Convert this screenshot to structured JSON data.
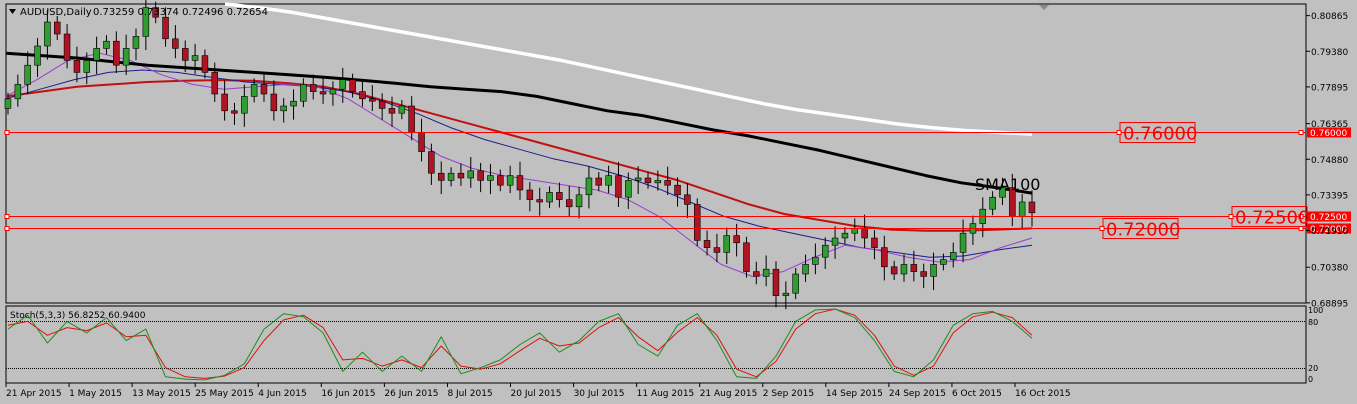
{
  "colors": {
    "background": "#c0c0c0",
    "frame": "#000000",
    "bull_candle": "#2e9e2e",
    "bear_candle": "#b01424",
    "sma100": "#000000",
    "sma200": "#ffffff",
    "ma_red": "#c01010",
    "ma_blue": "#1c1c8c",
    "ma_purple": "#9a3cd0",
    "level_line": "#ff0000",
    "stoch_main": "#1f8c1f",
    "stoch_signal": "#e01010"
  },
  "header": {
    "symbol_label": "AUDUSD,Daily",
    "ohlc_text": "0.73259 0.73374 0.72496 0.72654"
  },
  "annotation": {
    "sma_label": "SMA100"
  },
  "levels": [
    {
      "label": "0.76000",
      "price": 0.76,
      "tag": "0.76000"
    },
    {
      "label": "0.72500",
      "price": 0.725,
      "tag": "0.72500"
    },
    {
      "label": "0.72000",
      "price": 0.72,
      "tag": "0.72000"
    }
  ],
  "stochastic": {
    "label": "Stoch(5,3,3) 56.8252 60.9400",
    "scale_labels": [
      "100",
      "80",
      "20",
      "0"
    ],
    "levels": [
      80,
      20
    ],
    "ylim": [
      0,
      100
    ]
  },
  "chart_data": {
    "type": "candlestick",
    "title": "AUDUSD,Daily",
    "ylim": [
      0.6889,
      0.8135
    ],
    "y_ticks": [
      "0.80865",
      "0.79380",
      "0.77895",
      "0.76365",
      "0.74880",
      "0.73395",
      "0.71910",
      "0.70380",
      "0.68895"
    ],
    "x_ticks": [
      "21 Apr 2015",
      "1 May 2015",
      "13 May 2015",
      "25 May 2015",
      "4 Jun 2015",
      "16 Jun 2015",
      "26 Jun 2015",
      "8 Jul 2015",
      "20 Jul 2015",
      "30 Jul 2015",
      "11 Aug 2015",
      "21 Aug 2015",
      "2 Sep 2015",
      "14 Sep 2015",
      "24 Sep 2015",
      "6 Oct 2015",
      "16 Oct 2015"
    ],
    "closes": [
      0.774,
      0.78,
      0.788,
      0.796,
      0.806,
      0.801,
      0.79,
      0.785,
      0.79,
      0.795,
      0.798,
      0.788,
      0.795,
      0.8,
      0.812,
      0.808,
      0.799,
      0.795,
      0.79,
      0.792,
      0.785,
      0.776,
      0.769,
      0.768,
      0.775,
      0.78,
      0.776,
      0.769,
      0.771,
      0.773,
      0.78,
      0.777,
      0.776,
      0.778,
      0.782,
      0.777,
      0.774,
      0.773,
      0.77,
      0.768,
      0.771,
      0.76,
      0.752,
      0.743,
      0.74,
      0.743,
      0.741,
      0.744,
      0.74,
      0.742,
      0.738,
      0.742,
      0.736,
      0.732,
      0.731,
      0.735,
      0.732,
      0.729,
      0.734,
      0.741,
      0.738,
      0.742,
      0.733,
      0.74,
      0.741,
      0.739,
      0.74,
      0.738,
      0.734,
      0.73,
      0.715,
      0.712,
      0.71,
      0.717,
      0.714,
      0.702,
      0.7,
      0.703,
      0.692,
      0.693,
      0.701,
      0.705,
      0.708,
      0.713,
      0.716,
      0.718,
      0.72,
      0.716,
      0.712,
      0.704,
      0.701,
      0.705,
      0.702,
      0.7,
      0.705,
      0.707,
      0.71,
      0.718,
      0.722,
      0.728,
      0.733,
      0.737,
      0.725,
      0.731,
      0.7265
    ],
    "series": [
      {
        "name": "SMA100",
        "values": [
          0.793,
          0.792,
          0.791,
          0.7895,
          0.788,
          0.787,
          0.786,
          0.785,
          0.784,
          0.783,
          0.7818,
          0.7805,
          0.779,
          0.778,
          0.777,
          0.775,
          0.772,
          0.769,
          0.767,
          0.764,
          0.761,
          0.7585,
          0.7555,
          0.7525,
          0.749,
          0.7455,
          0.742,
          0.739,
          0.737,
          0.7347
        ]
      },
      {
        "name": "SMA200",
        "values": [
          0.8135,
          0.812,
          0.81,
          0.8075,
          0.805,
          0.8025,
          0.8,
          0.7975,
          0.795,
          0.7925,
          0.79,
          0.787,
          0.784,
          0.781,
          0.778,
          0.775,
          0.772,
          0.7695,
          0.7675,
          0.7655,
          0.7635,
          0.762,
          0.7608,
          0.76,
          0.7593
        ]
      },
      {
        "name": "MA red",
        "values": [
          0.775,
          0.777,
          0.779,
          0.78,
          0.781,
          0.7815,
          0.7818,
          0.7815,
          0.7805,
          0.779,
          0.776,
          0.772,
          0.768,
          0.764,
          0.76,
          0.756,
          0.752,
          0.748,
          0.744,
          0.74,
          0.735,
          0.73,
          0.726,
          0.7235,
          0.721,
          0.7195,
          0.719,
          0.719,
          0.7195,
          0.72
        ]
      },
      {
        "name": "MA blue",
        "values": [
          0.774,
          0.778,
          0.782,
          0.785,
          0.786,
          0.785,
          0.783,
          0.781,
          0.78,
          0.779,
          0.777,
          0.773,
          0.768,
          0.762,
          0.757,
          0.753,
          0.749,
          0.746,
          0.742,
          0.737,
          0.731,
          0.725,
          0.721,
          0.718,
          0.715,
          0.712,
          0.71,
          0.708,
          0.7085,
          0.711,
          0.713
        ]
      },
      {
        "name": "MA purple",
        "values": [
          0.775,
          0.782,
          0.79,
          0.793,
          0.79,
          0.784,
          0.78,
          0.778,
          0.779,
          0.78,
          0.779,
          0.774,
          0.766,
          0.758,
          0.75,
          0.745,
          0.742,
          0.74,
          0.738,
          0.736,
          0.732,
          0.725,
          0.715,
          0.705,
          0.7,
          0.702,
          0.708,
          0.713,
          0.711,
          0.708,
          0.706,
          0.707,
          0.712,
          0.716
        ]
      },
      {
        "name": "Stoch main",
        "values": [
          70,
          88,
          52,
          80,
          65,
          85,
          55,
          70,
          8,
          5,
          4,
          10,
          25,
          70,
          90,
          86,
          65,
          15,
          40,
          15,
          35,
          15,
          60,
          12,
          20,
          30,
          50,
          65,
          40,
          55,
          80,
          90,
          50,
          35,
          75,
          90,
          55,
          8,
          6,
          35,
          80,
          95,
          96,
          85,
          55,
          15,
          8,
          30,
          75,
          90,
          93,
          80,
          58
        ]
      },
      {
        "name": "Stoch signal",
        "values": [
          75,
          80,
          62,
          72,
          68,
          78,
          60,
          62,
          20,
          8,
          6,
          9,
          20,
          55,
          82,
          88,
          72,
          30,
          32,
          22,
          30,
          20,
          48,
          22,
          18,
          25,
          42,
          58,
          48,
          52,
          72,
          85,
          60,
          42,
          66,
          85,
          62,
          18,
          8,
          28,
          70,
          90,
          96,
          88,
          62,
          22,
          10,
          22,
          65,
          86,
          92,
          85,
          62
        ]
      }
    ]
  }
}
